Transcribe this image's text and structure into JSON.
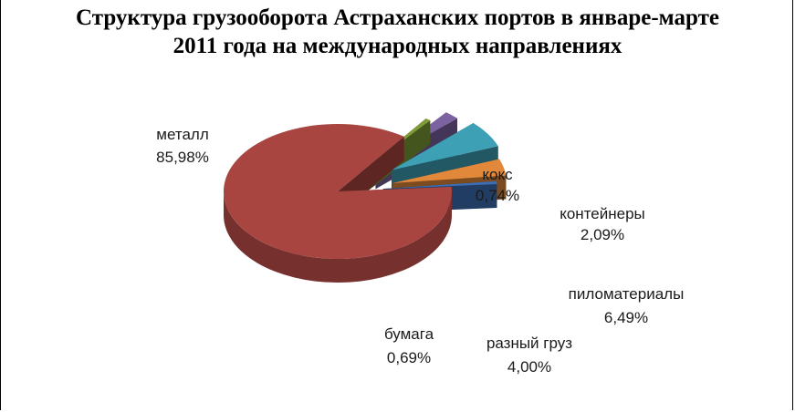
{
  "chart_data": {
    "type": "pie",
    "title": "Структура грузооборота Астраханских портов в январе-марте 2011 года на международных направлениях",
    "slices": [
      {
        "name": "металл",
        "value": 85.98,
        "label": "85,98%",
        "color": "#a94540"
      },
      {
        "name": "кокс",
        "value": 0.74,
        "label": "0,74%",
        "color": "#7e9b37"
      },
      {
        "name": "контейнеры",
        "value": 2.09,
        "label": "2,09%",
        "color": "#7b62a0"
      },
      {
        "name": "пиломатериалы",
        "value": 6.49,
        "label": "6,49%",
        "color": "#3ea0b5"
      },
      {
        "name": "разный груз",
        "value": 4.0,
        "label": "4,00%",
        "color": "#e1883a"
      },
      {
        "name": "бумага",
        "value": 0.69,
        "label": "0,69%",
        "color": "#3c6eb4"
      }
    ],
    "exploded": true,
    "three_d": true,
    "legend": "none"
  }
}
